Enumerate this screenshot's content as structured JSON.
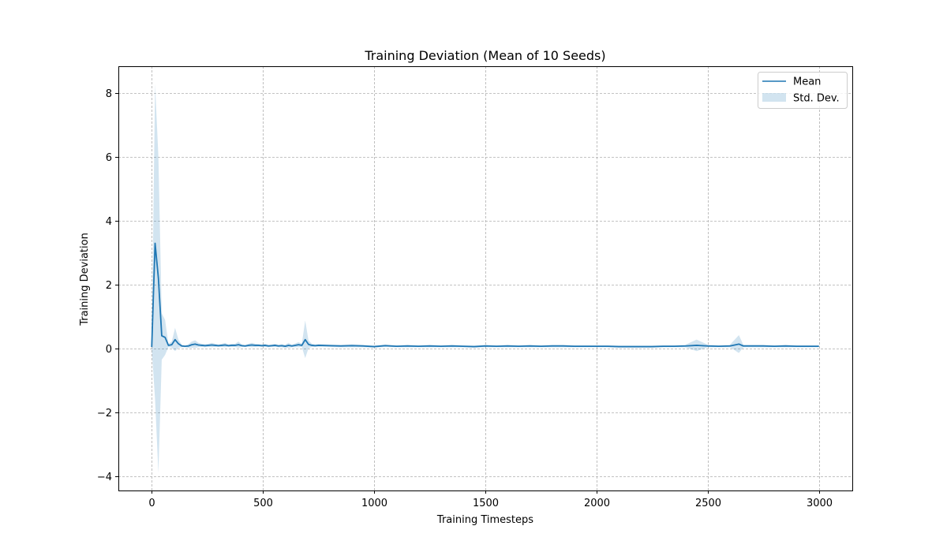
{
  "chart_data": {
    "type": "line",
    "title": "Training Deviation (Mean of 10 Seeds)",
    "xlabel": "Training Timesteps",
    "ylabel": "Training Deviation",
    "xlim": [
      -150,
      3150
    ],
    "ylim": [
      -4.45,
      8.85
    ],
    "xticks": [
      0,
      500,
      1000,
      1500,
      2000,
      2500,
      3000
    ],
    "yticks": [
      -4,
      -2,
      0,
      2,
      4,
      6,
      8
    ],
    "xtick_labels": [
      "0",
      "500",
      "1000",
      "1500",
      "2000",
      "2500",
      "3000"
    ],
    "ytick_labels": [
      "−4",
      "−2",
      "0",
      "2",
      "4",
      "6",
      "8"
    ],
    "grid": true,
    "legend_position": "top-right",
    "colors": {
      "mean_line": "#1f77b4",
      "std_fill": "#1f77b4"
    },
    "series": [
      {
        "name": "Mean",
        "x": [
          0,
          15,
          30,
          45,
          60,
          75,
          90,
          105,
          120,
          135,
          150,
          165,
          180,
          195,
          210,
          225,
          240,
          255,
          270,
          285,
          300,
          315,
          330,
          345,
          360,
          375,
          390,
          405,
          420,
          435,
          450,
          465,
          480,
          495,
          510,
          525,
          540,
          555,
          570,
          585,
          600,
          615,
          630,
          645,
          660,
          675,
          690,
          705,
          720,
          735,
          750,
          800,
          850,
          900,
          950,
          1000,
          1050,
          1100,
          1150,
          1200,
          1250,
          1300,
          1350,
          1400,
          1450,
          1500,
          1550,
          1600,
          1650,
          1700,
          1750,
          1800,
          1850,
          1900,
          1950,
          2000,
          2050,
          2100,
          2150,
          2200,
          2250,
          2300,
          2350,
          2400,
          2450,
          2500,
          2550,
          2600,
          2640,
          2660,
          2700,
          2750,
          2800,
          2850,
          2900,
          2950,
          3000
        ],
        "values": [
          0.05,
          3.3,
          2.2,
          0.4,
          0.35,
          0.1,
          0.12,
          0.28,
          0.15,
          0.08,
          0.07,
          0.08,
          0.12,
          0.14,
          0.11,
          0.1,
          0.09,
          0.1,
          0.11,
          0.1,
          0.09,
          0.1,
          0.11,
          0.09,
          0.1,
          0.1,
          0.12,
          0.09,
          0.08,
          0.1,
          0.11,
          0.1,
          0.1,
          0.09,
          0.1,
          0.08,
          0.09,
          0.1,
          0.08,
          0.09,
          0.07,
          0.1,
          0.08,
          0.1,
          0.12,
          0.1,
          0.28,
          0.13,
          0.1,
          0.09,
          0.1,
          0.09,
          0.08,
          0.09,
          0.08,
          0.06,
          0.09,
          0.07,
          0.08,
          0.07,
          0.08,
          0.07,
          0.08,
          0.07,
          0.06,
          0.08,
          0.07,
          0.08,
          0.07,
          0.08,
          0.07,
          0.08,
          0.08,
          0.07,
          0.07,
          0.07,
          0.07,
          0.06,
          0.06,
          0.06,
          0.06,
          0.07,
          0.07,
          0.08,
          0.1,
          0.08,
          0.07,
          0.08,
          0.14,
          0.08,
          0.08,
          0.08,
          0.07,
          0.08,
          0.07,
          0.07,
          0.07
        ]
      },
      {
        "name": "Std. Dev.",
        "x": [
          0,
          15,
          30,
          45,
          60,
          75,
          90,
          105,
          120,
          135,
          150,
          165,
          180,
          195,
          210,
          225,
          240,
          255,
          270,
          285,
          300,
          315,
          330,
          345,
          360,
          375,
          390,
          405,
          420,
          435,
          450,
          465,
          480,
          495,
          510,
          525,
          540,
          555,
          570,
          585,
          600,
          615,
          630,
          645,
          660,
          675,
          690,
          705,
          720,
          735,
          750,
          800,
          850,
          900,
          950,
          1000,
          1050,
          1100,
          1150,
          1200,
          1250,
          1300,
          1350,
          1400,
          1450,
          1500,
          1550,
          1600,
          1650,
          1700,
          1750,
          1800,
          1850,
          1900,
          1950,
          2000,
          2050,
          2100,
          2150,
          2200,
          2250,
          2300,
          2350,
          2400,
          2450,
          2500,
          2550,
          2600,
          2640,
          2660,
          2700,
          2750,
          2800,
          2850,
          2900,
          2950,
          3000
        ],
        "upper": [
          0.1,
          8.3,
          6.0,
          1.1,
          0.9,
          0.15,
          0.22,
          0.65,
          0.28,
          0.12,
          0.1,
          0.14,
          0.22,
          0.26,
          0.18,
          0.15,
          0.14,
          0.15,
          0.18,
          0.15,
          0.13,
          0.15,
          0.18,
          0.13,
          0.15,
          0.15,
          0.22,
          0.13,
          0.11,
          0.15,
          0.18,
          0.15,
          0.14,
          0.13,
          0.15,
          0.12,
          0.13,
          0.15,
          0.12,
          0.14,
          0.12,
          0.18,
          0.12,
          0.16,
          0.2,
          0.15,
          0.88,
          0.25,
          0.15,
          0.13,
          0.14,
          0.13,
          0.12,
          0.14,
          0.12,
          0.09,
          0.13,
          0.1,
          0.12,
          0.1,
          0.12,
          0.1,
          0.12,
          0.1,
          0.09,
          0.12,
          0.1,
          0.12,
          0.1,
          0.12,
          0.1,
          0.12,
          0.12,
          0.1,
          0.1,
          0.1,
          0.1,
          0.09,
          0.09,
          0.09,
          0.09,
          0.1,
          0.1,
          0.12,
          0.28,
          0.12,
          0.1,
          0.12,
          0.42,
          0.12,
          0.12,
          0.12,
          0.1,
          0.12,
          0.1,
          0.1,
          0.1
        ],
        "lower": [
          0.0,
          -1.6,
          -3.9,
          -0.35,
          -0.2,
          0.05,
          0.02,
          -0.08,
          0.02,
          0.04,
          0.04,
          0.02,
          0.02,
          0.02,
          0.04,
          0.05,
          0.04,
          0.05,
          0.04,
          0.05,
          0.05,
          0.05,
          0.04,
          0.05,
          0.05,
          0.05,
          0.02,
          0.05,
          0.05,
          0.05,
          0.04,
          0.05,
          0.06,
          0.05,
          0.05,
          0.04,
          0.05,
          0.05,
          0.04,
          0.04,
          0.02,
          0.02,
          0.04,
          0.04,
          0.04,
          0.05,
          -0.3,
          0.01,
          0.05,
          0.05,
          0.06,
          0.05,
          0.04,
          0.04,
          0.04,
          0.03,
          0.05,
          0.04,
          0.04,
          0.04,
          0.04,
          0.04,
          0.04,
          0.04,
          0.03,
          0.04,
          0.04,
          0.04,
          0.04,
          0.04,
          0.04,
          0.04,
          0.04,
          0.04,
          0.04,
          0.04,
          0.04,
          0.03,
          0.03,
          0.03,
          0.03,
          0.04,
          0.04,
          0.04,
          -0.08,
          0.04,
          0.04,
          0.04,
          -0.14,
          0.04,
          0.04,
          0.04,
          0.04,
          0.04,
          0.04,
          0.04,
          0.04
        ]
      }
    ]
  }
}
